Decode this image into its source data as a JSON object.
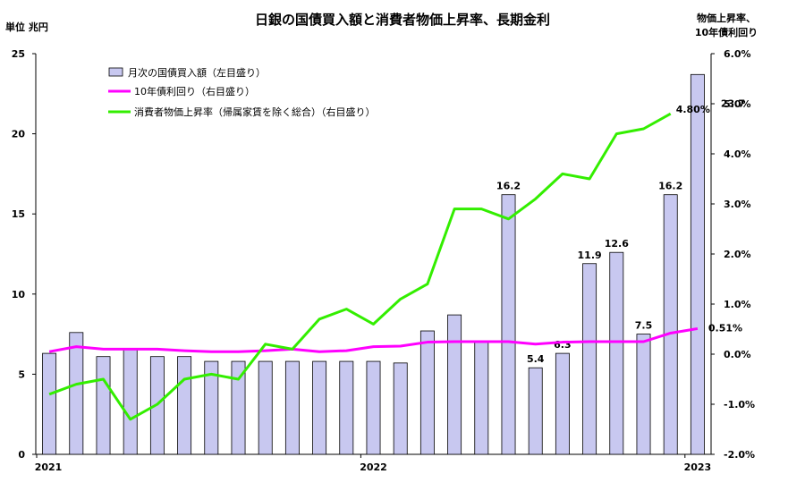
{
  "chart_data": {
    "type": "bar",
    "title": "日銀の国債買入額と消費者物価上昇率、長期金利",
    "left_unit_label": "単位 兆円",
    "right_unit_label_line1": "物価上昇率、",
    "right_unit_label_line2": "10年債利回り",
    "x_ticks": [
      "2021",
      "2022",
      "2023"
    ],
    "x_tick_months": [
      0,
      12,
      24
    ],
    "y_left": {
      "min": 0,
      "max": 25,
      "ticks": [
        "0",
        "5",
        "10",
        "15",
        "20",
        "25"
      ]
    },
    "y_right": {
      "min": -2.0,
      "max": 6.0,
      "ticks": [
        "-2.0%",
        "-1.0%",
        "0.0%",
        "1.0%",
        "2.0%",
        "3.0%",
        "4.0%",
        "5.0%",
        "6.0%"
      ]
    },
    "legend": {
      "bars": "月次の国債買入額（左目盛り）",
      "yield": "10年債利回り（右目盛り）",
      "cpi": "消費者物価上昇率（帰属家賃を除く総合）（右目盛り）"
    },
    "colors": {
      "bars": "#c8c8f0",
      "yield": "#ff00ff",
      "cpi": "#33ee00"
    },
    "bars": [
      6.3,
      7.6,
      6.1,
      6.6,
      6.1,
      6.1,
      5.8,
      5.8,
      5.8,
      5.8,
      5.8,
      5.8,
      5.8,
      5.7,
      7.7,
      8.7,
      7.0,
      16.2,
      5.4,
      6.3,
      11.9,
      12.6,
      7.5,
      16.2,
      23.7
    ],
    "yield": [
      0.05,
      0.15,
      0.1,
      0.1,
      0.1,
      0.07,
      0.05,
      0.05,
      0.07,
      0.1,
      0.05,
      0.07,
      0.15,
      0.16,
      0.24,
      0.25,
      0.25,
      0.25,
      0.2,
      0.24,
      0.25,
      0.25,
      0.25,
      0.42,
      0.51
    ],
    "cpi": [
      -0.8,
      -0.6,
      -0.5,
      -1.3,
      -1.0,
      -0.5,
      -0.4,
      -0.5,
      0.2,
      0.1,
      0.7,
      0.9,
      0.6,
      1.1,
      1.4,
      2.9,
      2.9,
      2.7,
      3.1,
      3.6,
      3.5,
      4.4,
      4.5,
      4.8,
      null
    ],
    "bar_labels": [
      {
        "index": 17,
        "text": "16.2"
      },
      {
        "index": 18,
        "text": "5.4"
      },
      {
        "index": 19,
        "text": "6.3"
      },
      {
        "index": 20,
        "text": "11.9"
      },
      {
        "index": 21,
        "text": "12.6"
      },
      {
        "index": 22,
        "text": "7.5"
      },
      {
        "index": 23,
        "text": "16.2"
      },
      {
        "index": 24,
        "text": "23.7"
      }
    ],
    "cpi_end_label": "4.80%",
    "yield_end_label": "0.51%"
  }
}
